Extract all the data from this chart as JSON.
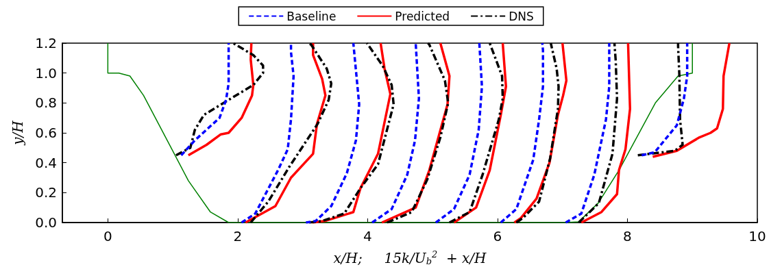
{
  "chart_data": {
    "type": "line",
    "xlabel": "x/H;     15k/U$_{b}$$^{2}$  + x/H",
    "ylabel": "y/H",
    "legend": "top",
    "grid": false,
    "xlim": [
      -0.7,
      10
    ],
    "xticks": [
      0,
      2,
      4,
      6,
      8,
      10
    ],
    "ylim": [
      0,
      1.2
    ],
    "yticks": [
      {
        "value": 0,
        "label": "0.0"
      },
      {
        "value": 0.2,
        "label": "0.2"
      },
      {
        "value": 0.4,
        "label": "0.4"
      },
      {
        "value": 0.6,
        "label": "0.6"
      },
      {
        "value": 0.8,
        "label": "0.8"
      },
      {
        "value": 1,
        "label": "1.0"
      },
      {
        "value": 1.2,
        "label": "1.2"
      }
    ],
    "series": [
      {
        "name": "Baseline",
        "color": "#0000ff",
        "line_style": "dashed",
        "x": [
          1.13,
          1.34,
          1.72,
          1.82,
          1.86,
          1.86
        ],
        "values": [
          0.45,
          0.55,
          0.7,
          0.82,
          0.93,
          1.2
        ]
      },
      {
        "name": "Predicted",
        "color": "#ff0000",
        "line_style": "solid",
        "x": [
          1.24,
          1.52,
          1.74,
          1.86,
          2.06,
          2.22,
          2.24,
          2.2,
          2.21
        ],
        "values": [
          0.45,
          0.52,
          0.59,
          0.6,
          0.7,
          0.85,
          0.92,
          1.09,
          1.2
        ]
      },
      {
        "name": "DNS",
        "color": "#000000",
        "line_style": "dashdot",
        "x": [
          1.05,
          1.27,
          1.34,
          1.48,
          1.82,
          2.24,
          2.39,
          2.39,
          2.24,
          1.93
        ],
        "values": [
          0.45,
          0.5,
          0.62,
          0.72,
          0.81,
          0.92,
          1,
          1.05,
          1.12,
          1.2
        ]
      },
      {
        "color": "#0000ff",
        "line_style": "dashed",
        "x": [
          2.06,
          2.27,
          2.62,
          2.77,
          2.82,
          2.86,
          2.82,
          2.82
        ],
        "values": [
          0,
          0.06,
          0.35,
          0.49,
          0.69,
          0.98,
          1.14,
          1.2
        ]
      },
      {
        "color": "#ff0000",
        "line_style": "solid",
        "x": [
          2.12,
          2.58,
          2.82,
          3.16,
          3.22,
          3.35,
          3.3,
          3.16,
          3.16
        ],
        "values": [
          0,
          0.11,
          0.3,
          0.46,
          0.66,
          0.85,
          0.96,
          1.12,
          1.2
        ]
      },
      {
        "color": "#000000",
        "line_style": "dashdot",
        "x": [
          2.2,
          2.47,
          2.79,
          3.23,
          3.4,
          3.44,
          3.37,
          3.13,
          3.08
        ],
        "values": [
          0,
          0.14,
          0.37,
          0.66,
          0.82,
          0.93,
          1.03,
          1.19,
          1.2
        ]
      },
      {
        "color": "#0000ff",
        "line_style": "dashed",
        "x": [
          3.05,
          3.2,
          3.44,
          3.68,
          3.82,
          3.87,
          3.78
        ],
        "values": [
          0,
          0.01,
          0.11,
          0.33,
          0.55,
          0.79,
          1.2
        ]
      },
      {
        "color": "#ff0000",
        "line_style": "solid",
        "x": [
          3.15,
          3.34,
          3.78,
          3.89,
          4.16,
          4.35,
          4.26,
          4.2
        ],
        "values": [
          0,
          0.01,
          0.07,
          0.23,
          0.46,
          0.86,
          1.03,
          1.2
        ]
      },
      {
        "color": "#000000",
        "line_style": "dashdot",
        "x": [
          3.1,
          3.3,
          3.64,
          3.89,
          4.16,
          4.4,
          4.37,
          4.23,
          3.99
        ],
        "values": [
          0,
          0.01,
          0.06,
          0.23,
          0.39,
          0.79,
          0.92,
          1.05,
          1.2
        ]
      },
      {
        "color": "#0000ff",
        "line_style": "dashed",
        "x": [
          4.07,
          4.37,
          4.61,
          4.73,
          4.79,
          4.74
        ],
        "values": [
          0,
          0.09,
          0.32,
          0.55,
          0.83,
          1.2
        ]
      },
      {
        "color": "#ff0000",
        "line_style": "solid",
        "x": [
          4.22,
          4.74,
          4.95,
          5.23,
          5.26,
          5.12
        ],
        "values": [
          0,
          0.1,
          0.35,
          0.79,
          0.98,
          1.2
        ]
      },
      {
        "color": "#000000",
        "line_style": "dashdot",
        "x": [
          4.3,
          4.68,
          4.92,
          5.12,
          5.24,
          5.19,
          4.95,
          4.93
        ],
        "values": [
          0,
          0.07,
          0.29,
          0.57,
          0.8,
          0.95,
          1.19,
          1.2
        ]
      },
      {
        "color": "#0000ff",
        "line_style": "dashed",
        "x": [
          5.05,
          5.33,
          5.57,
          5.71,
          5.76,
          5.72
        ],
        "values": [
          0,
          0.09,
          0.32,
          0.62,
          0.91,
          1.2
        ]
      },
      {
        "color": "#ff0000",
        "line_style": "solid",
        "x": [
          5.33,
          5.67,
          5.88,
          6.05,
          6.13,
          6.08
        ],
        "values": [
          0,
          0.1,
          0.35,
          0.72,
          0.91,
          1.2
        ]
      },
      {
        "color": "#000000",
        "line_style": "dashdot",
        "x": [
          5.26,
          5.57,
          5.77,
          6.02,
          6.08,
          6.07,
          5.88
        ],
        "values": [
          0,
          0.07,
          0.32,
          0.69,
          0.83,
          0.98,
          1.2
        ]
      },
      {
        "color": "#0000ff",
        "line_style": "dashed",
        "x": [
          6.05,
          6.29,
          6.55,
          6.64,
          6.7,
          6.7,
          6.69
        ],
        "values": [
          0,
          0.09,
          0.42,
          0.69,
          0.91,
          1.15,
          1.2
        ]
      },
      {
        "color": "#ff0000",
        "line_style": "solid",
        "x": [
          6.26,
          6.36,
          6.6,
          6.8,
          6.93,
          7.01,
          7.06,
          7
        ],
        "values": [
          0,
          0.03,
          0.16,
          0.4,
          0.72,
          0.85,
          0.95,
          1.2
        ]
      },
      {
        "color": "#000000",
        "line_style": "dashdot",
        "x": [
          6.29,
          6.39,
          6.64,
          6.81,
          6.93,
          6.94,
          6.91,
          6.82
        ],
        "values": [
          0,
          0.03,
          0.14,
          0.43,
          0.76,
          0.91,
          1.03,
          1.2
        ]
      },
      {
        "color": "#0000ff",
        "line_style": "dashed",
        "x": [
          7.05,
          7.29,
          7.49,
          7.67,
          7.72,
          7.72
        ],
        "values": [
          0,
          0.06,
          0.32,
          0.69,
          0.91,
          1.2
        ]
      },
      {
        "color": "#ff0000",
        "line_style": "solid",
        "x": [
          7.29,
          7.6,
          7.84,
          7.87,
          7.97,
          8.04,
          8.01
        ],
        "values": [
          0,
          0.07,
          0.19,
          0.35,
          0.49,
          0.76,
          1.2
        ]
      },
      {
        "color": "#000000",
        "line_style": "dashdot",
        "x": [
          7.25,
          7.56,
          7.77,
          7.84,
          7.82,
          7.8
        ],
        "values": [
          0,
          0.13,
          0.46,
          0.83,
          1.08,
          1.2
        ]
      },
      {
        "color": "#0000ff",
        "line_style": "dashed",
        "x": [
          8.22,
          8.42,
          8.59,
          8.76,
          8.87,
          8.92,
          8.92
        ],
        "values": [
          0.45,
          0.47,
          0.56,
          0.65,
          0.83,
          0.98,
          1.2
        ]
      },
      {
        "color": "#ff0000",
        "line_style": "solid",
        "x": [
          8.39,
          8.76,
          9.11,
          9.28,
          9.38,
          9.47,
          9.48,
          9.57
        ],
        "values": [
          0.44,
          0.48,
          0.57,
          0.6,
          0.63,
          0.76,
          0.98,
          1.2
        ]
      },
      {
        "color": "#000000",
        "line_style": "dashdot",
        "x": [
          8.16,
          8.73,
          8.85,
          8.81,
          8.8,
          8.78,
          8.78
        ],
        "values": [
          0.45,
          0.48,
          0.52,
          0.69,
          0.98,
          1.18,
          1.2
        ]
      },
      {
        "color": "#008000",
        "line_style": "solid",
        "x": [
          0,
          0,
          0.17,
          0.34,
          0.55,
          0.89,
          1.24,
          1.58,
          1.86,
          7.05,
          7.25,
          7.55,
          7.87,
          8.43,
          8.78,
          9,
          9
        ],
        "values": [
          1.2,
          1,
          1,
          0.98,
          0.85,
          0.57,
          0.28,
          0.07,
          0,
          0,
          0.005,
          0.13,
          0.35,
          0.8,
          0.98,
          1,
          1.2
        ]
      }
    ]
  }
}
